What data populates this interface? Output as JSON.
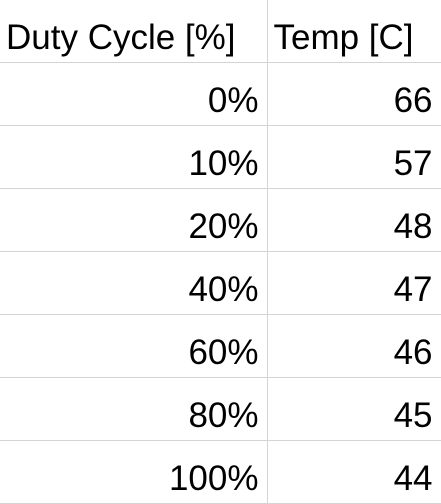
{
  "table": {
    "headers": [
      "Duty Cycle [%]",
      "Temp [C]"
    ],
    "rows": [
      [
        "0%",
        "66"
      ],
      [
        "10%",
        "57"
      ],
      [
        "20%",
        "48"
      ],
      [
        "40%",
        "47"
      ],
      [
        "60%",
        "46"
      ],
      [
        "80%",
        "45"
      ],
      [
        "100%",
        "44"
      ]
    ]
  }
}
